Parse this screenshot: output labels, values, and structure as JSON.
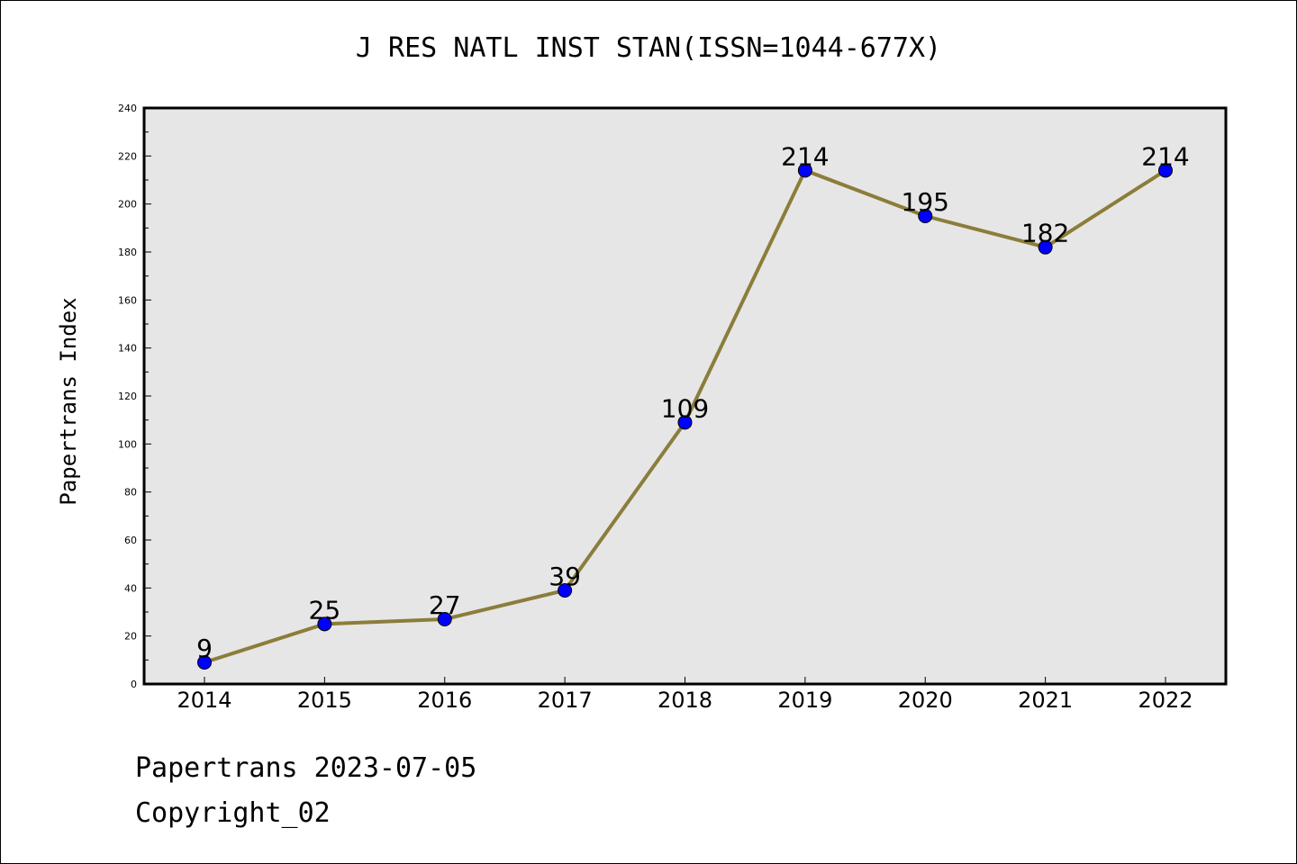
{
  "chart_data": {
    "type": "line",
    "title": "J RES NATL INST STAN(ISSN=1044-677X)",
    "xlabel": "",
    "ylabel": "Papertrans Index",
    "categories": [
      "2014",
      "2015",
      "2016",
      "2017",
      "2018",
      "2019",
      "2020",
      "2021",
      "2022"
    ],
    "series": [
      {
        "values": [
          9,
          25,
          27,
          39,
          109,
          214,
          195,
          182,
          214
        ]
      }
    ],
    "ylim": [
      0,
      240
    ],
    "yticks": [
      0,
      20,
      40,
      60,
      80,
      100,
      120,
      140,
      160,
      180,
      200,
      220,
      240
    ],
    "grid": false,
    "line_color": "#8b7d3a",
    "marker_color": "#0000ff",
    "plot_background": "#e6e6e6"
  },
  "footer": {
    "line1": "Papertrans 2023-07-05",
    "line2": "Copyright_02"
  }
}
